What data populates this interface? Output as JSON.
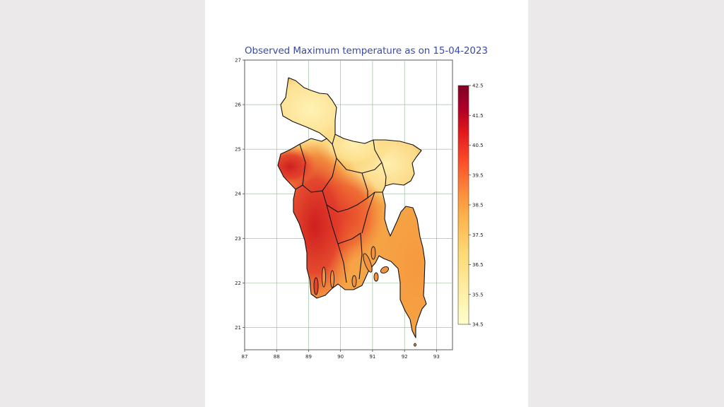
{
  "title": "Observed Maximum temperature as on 15-04-2023",
  "map": {
    "x_axis": {
      "label": "",
      "range": [
        87,
        93.5
      ],
      "ticks": [
        "87",
        "88",
        "89",
        "90",
        "91",
        "92",
        "93"
      ]
    },
    "y_axis": {
      "label": "",
      "range": [
        20.5,
        27
      ],
      "ticks": [
        "21",
        "22",
        "23",
        "24",
        "25",
        "26",
        "27"
      ]
    },
    "grid": true,
    "region": "Bangladesh",
    "colormap": [
      "#ffffcc",
      "#ffeda0",
      "#fed976",
      "#feb24c",
      "#fd8d3c",
      "#fc4e2a",
      "#e31a1c",
      "#b10026",
      "#800026"
    ]
  },
  "colorbar": {
    "min": 34.5,
    "max": 42.5,
    "ticks": [
      "42.5",
      "41.5",
      "40.5",
      "39.5",
      "38.5",
      "37.5",
      "36.5",
      "35.5",
      "34.5"
    ]
  },
  "chart_data": {
    "type": "heatmap",
    "title": "Observed Maximum temperature as on 15-04-2023",
    "xlabel": "",
    "ylabel": "",
    "xlim": [
      87,
      93.5
    ],
    "ylim": [
      20.5,
      27
    ],
    "value_range": [
      34.5,
      42.5
    ],
    "hotspots": [
      {
        "lon": 88.8,
        "lat": 23.4,
        "value": 41.5
      },
      {
        "lon": 89.8,
        "lat": 23.6,
        "value": 40.5
      },
      {
        "lon": 88.3,
        "lat": 24.7,
        "value": 40.0
      },
      {
        "lon": 91.8,
        "lat": 22.5,
        "value": 38.0
      },
      {
        "lon": 89.0,
        "lat": 26.0,
        "value": 35.0
      },
      {
        "lon": 91.5,
        "lat": 24.9,
        "value": 35.5
      }
    ]
  }
}
